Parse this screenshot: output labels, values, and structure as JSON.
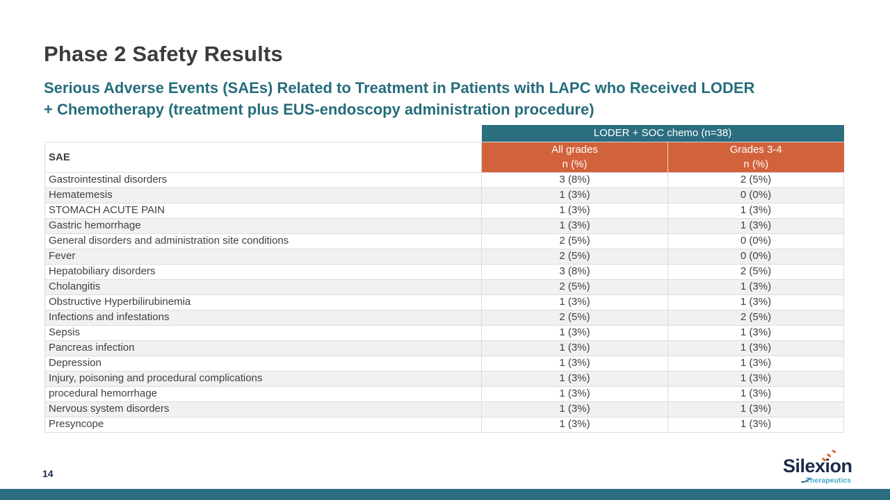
{
  "slide": {
    "title": "Phase 2 Safety Results",
    "subtitle_lines": [
      "Serious Adverse Events (SAEs) Related to Treatment in Patients with LAPC who Received LODER",
      "+ Chemotherapy (treatment plus EUS-endoscopy administration procedure)"
    ],
    "page_number": "14"
  },
  "colors": {
    "teal": "#2B6E80",
    "orange": "#D2623C",
    "subtitle_teal": "#256D7B",
    "title_gray": "#3B3B3B",
    "row_stripe": "#F1F1F1",
    "border": "#DCDCDC",
    "logo_navy": "#1C2B4A",
    "logo_blue": "#3FA9CC",
    "logo_orange": "#E06A3B"
  },
  "table": {
    "group_header": "LODER + SOC chemo (n=38)",
    "sae_header": "SAE",
    "columns": [
      {
        "label": "All grades",
        "sublabel": "n (%)"
      },
      {
        "label": "Grades 3-4",
        "sublabel": "n (%)"
      }
    ],
    "rows": [
      {
        "sae": "Gastrointestinal disorders",
        "all_grades": "3 (8%)",
        "grades_3_4": "2 (5%)"
      },
      {
        "sae": "Hematemesis",
        "all_grades": "1 (3%)",
        "grades_3_4": "0 (0%)"
      },
      {
        "sae": "STOMACH ACUTE PAIN",
        "all_grades": "1 (3%)",
        "grades_3_4": "1 (3%)"
      },
      {
        "sae": "Gastric hemorrhage",
        "all_grades": "1 (3%)",
        "grades_3_4": "1 (3%)"
      },
      {
        "sae": "General disorders and administration site conditions",
        "all_grades": "2 (5%)",
        "grades_3_4": "0 (0%)"
      },
      {
        "sae": "Fever",
        "all_grades": "2 (5%)",
        "grades_3_4": "0 (0%)"
      },
      {
        "sae": "Hepatobiliary disorders",
        "all_grades": "3 (8%)",
        "grades_3_4": "2 (5%)"
      },
      {
        "sae": "Cholangitis",
        "all_grades": "2 (5%)",
        "grades_3_4": "1 (3%)"
      },
      {
        "sae": "Obstructive Hyperbilirubinemia",
        "all_grades": "1 (3%)",
        "grades_3_4": "1 (3%)"
      },
      {
        "sae": "Infections and infestations",
        "all_grades": "2 (5%)",
        "grades_3_4": "2 (5%)"
      },
      {
        "sae": "Sepsis",
        "all_grades": "1 (3%)",
        "grades_3_4": "1 (3%)"
      },
      {
        "sae": "Pancreas infection",
        "all_grades": "1 (3%)",
        "grades_3_4": "1 (3%)"
      },
      {
        "sae": "Depression",
        "all_grades": "1 (3%)",
        "grades_3_4": "1 (3%)"
      },
      {
        "sae": "Injury, poisoning and procedural complications",
        "all_grades": "1 (3%)",
        "grades_3_4": "1 (3%)"
      },
      {
        "sae": "procedural hemorrhage",
        "all_grades": "1 (3%)",
        "grades_3_4": "1 (3%)"
      },
      {
        "sae": "Nervous system disorders",
        "all_grades": "1 (3%)",
        "grades_3_4": "1 (3%)"
      },
      {
        "sae": "Presyncope",
        "all_grades": "1 (3%)",
        "grades_3_4": "1 (3%)"
      }
    ]
  },
  "logo": {
    "name": "Silexion",
    "tagline": "Therapeutics"
  }
}
